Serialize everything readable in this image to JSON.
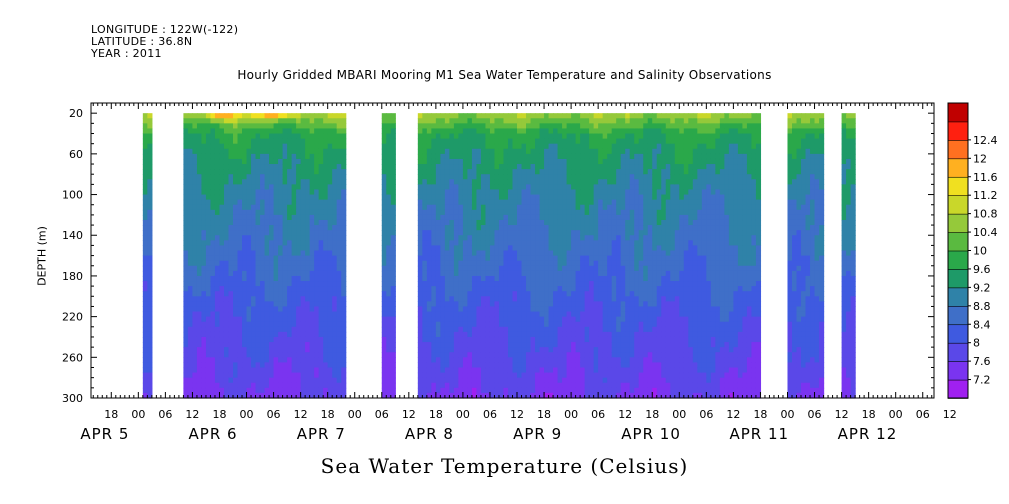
{
  "header": {
    "longitude": "LONGITUDE : 122W(-122)",
    "latitude": "LATITUDE : 36.8N",
    "year": "YEAR : 2011"
  },
  "chart_data": {
    "type": "heatmap",
    "title": "Hourly Gridded MBARI Mooring M1 Sea Water Temperature and Salinity Observations",
    "bottom_title": "Sea Water Temperature (Celsius)",
    "ylabel": "DEPTH (m)",
    "x_unit": "hours from 2011-04-05 00:00",
    "xlim": [
      -10.5,
      176.5
    ],
    "ylim": [
      300,
      10
    ],
    "y_ticks": [
      20,
      60,
      100,
      140,
      180,
      220,
      260,
      300
    ],
    "y_tick_labels": [
      "20",
      "60",
      "100",
      "140",
      "180",
      "220",
      "260",
      "300"
    ],
    "x_hour_ticks": [
      -6,
      0,
      6,
      12,
      18,
      0,
      6,
      12,
      18,
      0,
      6,
      12,
      18,
      0,
      6,
      12,
      18,
      0,
      6,
      12,
      18,
      0,
      6,
      12,
      18,
      0,
      6,
      12,
      18,
      0,
      6,
      12
    ],
    "x_hour_labels": [
      "18",
      "00",
      "06",
      "12",
      "18",
      "00",
      "06",
      "12",
      "18",
      "00",
      "06",
      "12",
      "18",
      "00",
      "06",
      "12",
      "18",
      "00",
      "06",
      "12",
      "18",
      "00",
      "06",
      "12",
      "18",
      "00",
      "06",
      "12",
      "18",
      "00",
      "06",
      "12"
    ],
    "date_labels": [
      "APR 5",
      "APR 6",
      "APR 7",
      "APR 8",
      "APR 9",
      "APR 10",
      "APR 11",
      "APR 12"
    ],
    "data_segments_hours": [
      [
        1,
        3
      ],
      [
        10,
        46
      ],
      [
        54,
        57
      ],
      [
        62,
        138
      ],
      [
        144,
        152
      ],
      [
        156,
        159
      ]
    ],
    "depth_profile_celsius": [
      {
        "depth": 20,
        "temp": 10.7
      },
      {
        "depth": 40,
        "temp": 9.7
      },
      {
        "depth": 60,
        "temp": 9.4
      },
      {
        "depth": 100,
        "temp": 9.0
      },
      {
        "depth": 140,
        "temp": 8.75
      },
      {
        "depth": 180,
        "temp": 8.45
      },
      {
        "depth": 220,
        "temp": 8.1
      },
      {
        "depth": 260,
        "temp": 7.85
      },
      {
        "depth": 300,
        "temp": 7.5
      }
    ],
    "warm_patches": [
      {
        "hour": 19,
        "temp": 12.1
      },
      {
        "hour": 30,
        "temp": 11.9
      }
    ],
    "colorbar": {
      "levels": [
        7.2,
        7.6,
        8,
        8.4,
        8.8,
        9.2,
        9.6,
        10,
        10.4,
        10.8,
        11.2,
        11.6,
        12,
        12.4
      ],
      "labels": [
        "7.2",
        "7.6",
        "8",
        "8.4",
        "8.8",
        "9.2",
        "9.6",
        "10",
        "10.4",
        "10.8",
        "11.2",
        "11.6",
        "12",
        "12.4"
      ],
      "colors": [
        "#a020f0",
        "#7a34f0",
        "#5a48e8",
        "#3f5ae0",
        "#3f6fc8",
        "#2f82a8",
        "#1e9a68",
        "#2aa84a",
        "#5aba40",
        "#95c93a",
        "#c9d72a",
        "#f0e020",
        "#ffb020",
        "#ff7020",
        "#ff2010",
        "#c00000"
      ]
    }
  }
}
